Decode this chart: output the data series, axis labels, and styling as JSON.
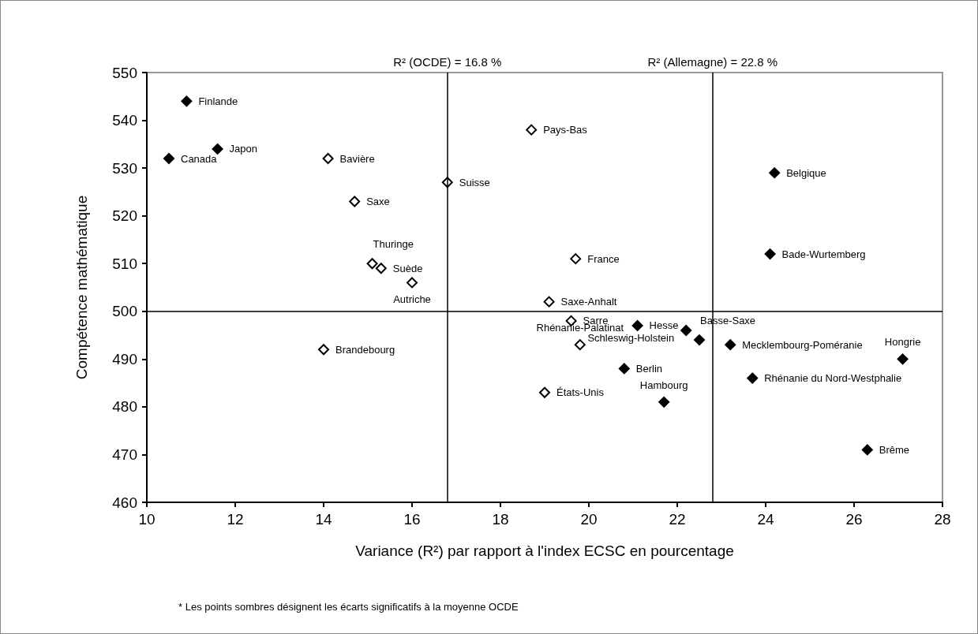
{
  "chart_data": {
    "type": "scatter",
    "xlabel": "Variance (R²) par rapport à l'index ECSC en pourcentage",
    "ylabel": "Compétence mathématique",
    "xlim": [
      10,
      28
    ],
    "xticks": [
      10,
      12,
      14,
      16,
      18,
      20,
      22,
      24,
      26,
      28
    ],
    "ylim": [
      460,
      550
    ],
    "yticks": [
      460,
      470,
      480,
      490,
      500,
      510,
      520,
      530,
      540,
      550
    ],
    "grid": false,
    "marker": "diamond",
    "series": [
      {
        "color": "#000000",
        "x": [
          10.9,
          11.6,
          10.5,
          24.2,
          24.1,
          21.1,
          20.8,
          21.7,
          22.2,
          22.5,
          23.2,
          23.7,
          27.1,
          26.3
        ],
        "values": [
          544,
          534,
          532,
          529,
          512,
          497,
          488,
          481,
          496,
          494,
          493,
          486,
          490,
          471
        ]
      },
      {
        "color": "#ffffff",
        "x": [
          14.1,
          14.7,
          16.8,
          15.1,
          15.3,
          16.0,
          18.7,
          19.7,
          19.1,
          19.6,
          14.0,
          19.8,
          19.0
        ],
        "values": [
          532,
          523,
          527,
          510,
          509,
          506,
          538,
          511,
          502,
          498,
          492,
          493,
          483
        ]
      }
    ],
    "ref_lines": [
      {
        "axis": "x",
        "value": 16.8,
        "label": "R² (OCDE) = 16.8 %"
      },
      {
        "axis": "x",
        "value": 22.8,
        "label": "R² (Allemagne) = 22.8 %"
      },
      {
        "axis": "y",
        "value": 500
      }
    ],
    "annotations": [
      {
        "text": "Finlande",
        "x": 10.9,
        "y": 544
      },
      {
        "text": "Japon",
        "x": 11.6,
        "y": 534
      },
      {
        "text": "Canada",
        "x": 10.5,
        "y": 532
      },
      {
        "text": "Belgique",
        "x": 24.2,
        "y": 529
      },
      {
        "text": "Bade-Wurtemberg",
        "x": 24.1,
        "y": 512
      },
      {
        "text": "Hesse",
        "x": 21.1,
        "y": 497
      },
      {
        "text": "Berlin",
        "x": 20.8,
        "y": 488
      },
      {
        "text": "Hambourg",
        "x": 21.7,
        "y": 481
      },
      {
        "text": "Schleswig-Holstein",
        "x": 22.2,
        "y": 496
      },
      {
        "text": "Basse-Saxe",
        "x": 22.5,
        "y": 494
      },
      {
        "text": "Mecklembourg-Poméranie",
        "x": 23.2,
        "y": 493
      },
      {
        "text": "Rhénanie du Nord-Westphalie",
        "x": 23.7,
        "y": 486
      },
      {
        "text": "Hongrie",
        "x": 27.1,
        "y": 490
      },
      {
        "text": "Brême",
        "x": 26.3,
        "y": 471
      },
      {
        "text": "Bavière",
        "x": 14.1,
        "y": 532
      },
      {
        "text": "Saxe",
        "x": 14.7,
        "y": 523
      },
      {
        "text": "Suisse",
        "x": 16.8,
        "y": 527
      },
      {
        "text": "Thuringe",
        "x": 15.1,
        "y": 510
      },
      {
        "text": "Suède",
        "x": 15.3,
        "y": 509
      },
      {
        "text": "Autriche",
        "x": 16.0,
        "y": 506
      },
      {
        "text": "Pays-Bas",
        "x": 18.7,
        "y": 538
      },
      {
        "text": "France",
        "x": 19.7,
        "y": 511
      },
      {
        "text": "Saxe-Anhalt",
        "x": 19.1,
        "y": 502
      },
      {
        "text": "Sarre",
        "x": 19.6,
        "y": 498
      },
      {
        "text": "Brandebourg",
        "x": 14.0,
        "y": 492
      },
      {
        "text": "Rhénanie-Palatinat",
        "x": 19.8,
        "y": 493
      },
      {
        "text": "États-Unis",
        "x": 19.0,
        "y": 483
      },
      "* Les points sombres désignent les écarts significatifs à la moyenne OCDE"
    ]
  }
}
